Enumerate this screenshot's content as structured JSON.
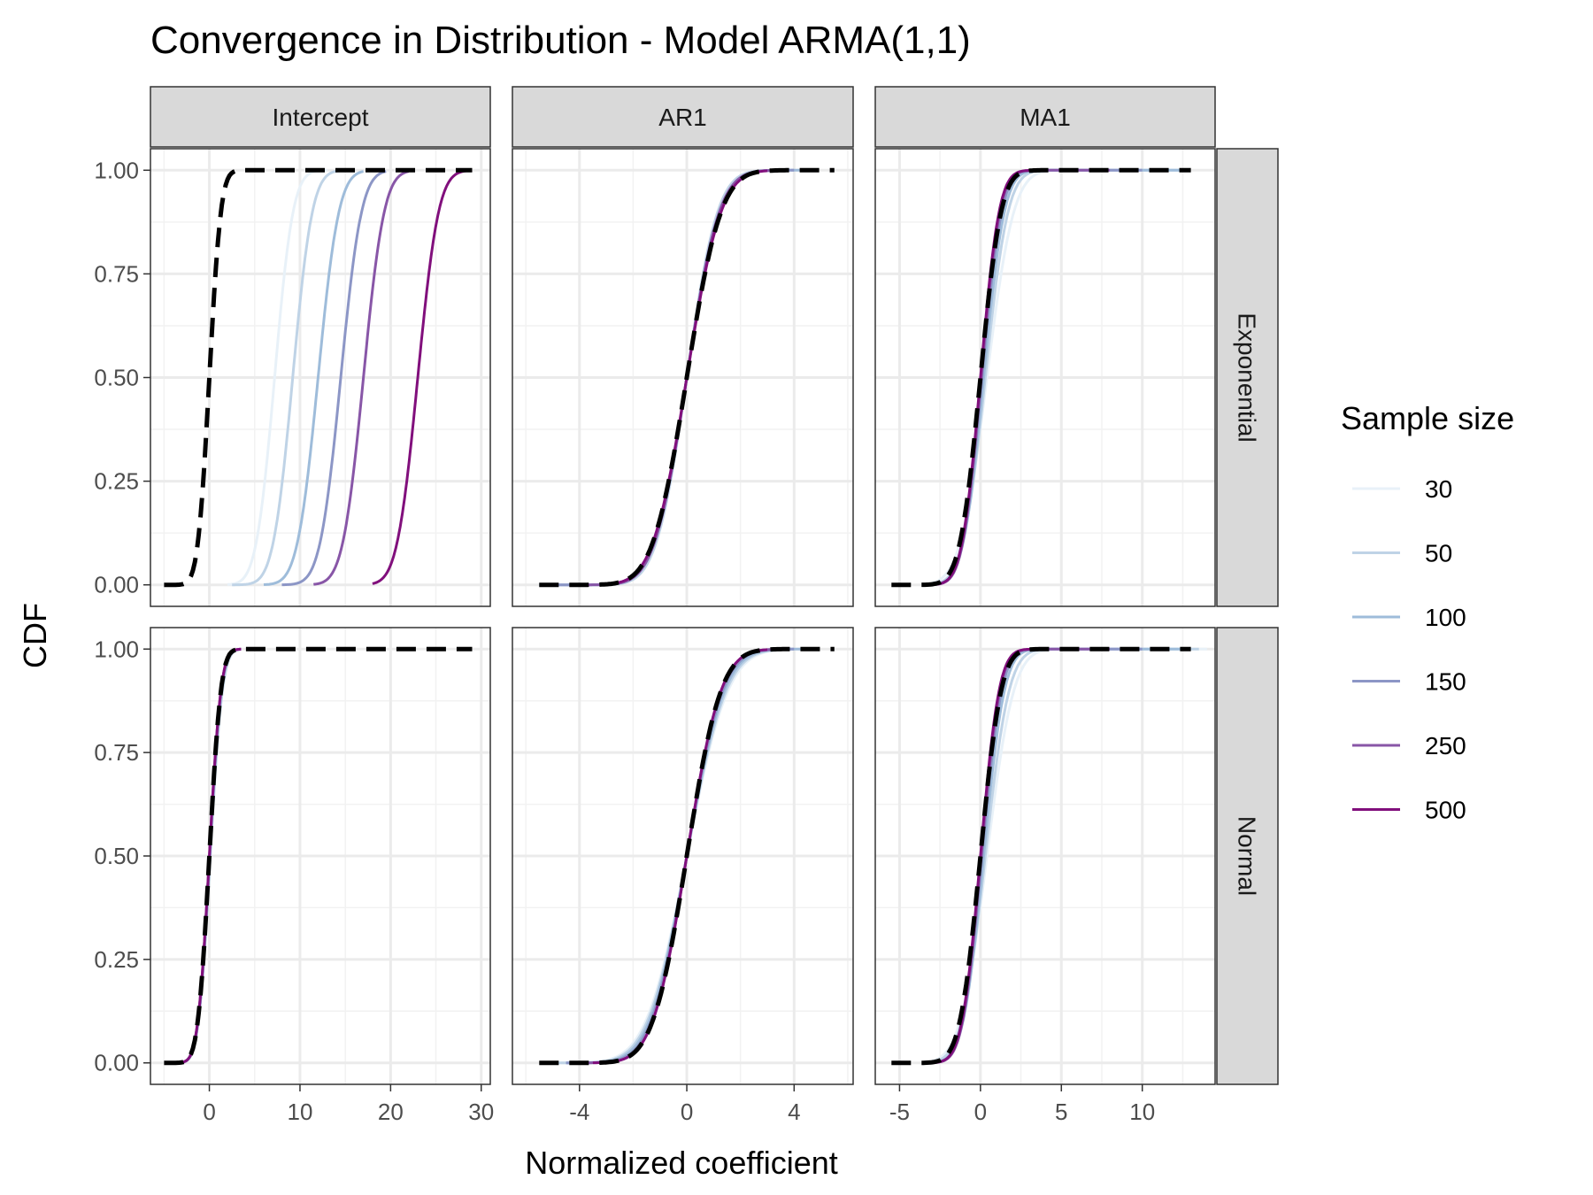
{
  "chart_data": {
    "type": "line",
    "title": "Convergence in Distribution - Model ARMA(1,1)",
    "xlabel": "Normalized coefficient",
    "ylabel": "CDF",
    "legend": {
      "title": "Sample size",
      "placement": "right"
    },
    "grid": true,
    "y_ticks": [
      "0.00",
      "0.25",
      "0.50",
      "0.75",
      "1.00"
    ],
    "ylim": [
      0,
      1
    ],
    "columns": [
      {
        "label": "Intercept",
        "xlim": [
          -6.5,
          31
        ],
        "ticks": [
          0,
          10,
          20,
          30
        ]
      },
      {
        "label": "AR1",
        "xlim": [
          -6.5,
          6.2
        ],
        "ticks": [
          -4,
          0,
          4
        ]
      },
      {
        "label": "MA1",
        "xlim": [
          -6.5,
          14.5
        ],
        "ticks": [
          -5,
          0,
          5,
          10
        ]
      }
    ],
    "rows": [
      "Exponential",
      "Normal"
    ],
    "series": [
      {
        "name": "30",
        "color": "#e8f1f8"
      },
      {
        "name": "50",
        "color": "#bfd3e6"
      },
      {
        "name": "100",
        "color": "#9ebcda"
      },
      {
        "name": "150",
        "color": "#8c96c6"
      },
      {
        "name": "250",
        "color": "#8856a7"
      },
      {
        "name": "500",
        "color": "#810f7c"
      }
    ],
    "reference": {
      "style": "dashed",
      "color": "#000000",
      "distribution": "standard normal CDF"
    },
    "panels": [
      {
        "row": "Exponential",
        "column": "Intercept",
        "x_range": [
          -5,
          29
        ],
        "curves": [
          {
            "series": "30",
            "center": 7.2,
            "spread": 1.6,
            "min": 2.0,
            "max": 13.0
          },
          {
            "series": "50",
            "center": 9.2,
            "spread": 1.7,
            "min": 2.5,
            "max": 15.0
          },
          {
            "series": "100",
            "center": 12.0,
            "spread": 1.8,
            "min": 6.0,
            "max": 17.0
          },
          {
            "series": "150",
            "center": 14.5,
            "spread": 1.8,
            "min": 8.0,
            "max": 19.5
          },
          {
            "series": "250",
            "center": 17.0,
            "spread": 1.8,
            "min": 11.5,
            "max": 22.0
          },
          {
            "series": "500",
            "center": 23.0,
            "spread": 1.8,
            "min": 18.0,
            "max": 29.0
          }
        ]
      },
      {
        "row": "Exponential",
        "column": "AR1",
        "x_range": [
          -5.5,
          5.5
        ],
        "curves": [
          {
            "series": "30",
            "center": 0.0,
            "spread": 0.95,
            "min": -5.5,
            "max": 3.5
          },
          {
            "series": "50",
            "center": 0.0,
            "spread": 0.9,
            "min": -5.5,
            "max": 4.0
          },
          {
            "series": "100",
            "center": 0.0,
            "spread": 0.95,
            "min": -5.5,
            "max": 4.3
          },
          {
            "series": "150",
            "center": 0.0,
            "spread": 0.95,
            "min": -5.0,
            "max": 4.0
          },
          {
            "series": "250",
            "center": 0.0,
            "spread": 0.95,
            "min": -4.0,
            "max": 3.5
          },
          {
            "series": "500",
            "center": 0.0,
            "spread": 1.0,
            "min": -3.0,
            "max": 3.0
          }
        ]
      },
      {
        "row": "Exponential",
        "column": "MA1",
        "x_range": [
          -5.5,
          13
        ],
        "curves": [
          {
            "series": "30",
            "center": 0.4,
            "spread": 1.3,
            "min": -3.0,
            "max": 12.5
          },
          {
            "series": "50",
            "center": 0.3,
            "spread": 1.1,
            "min": -3.0,
            "max": 12.5
          },
          {
            "series": "100",
            "center": 0.2,
            "spread": 1.0,
            "min": -3.0,
            "max": 12.5
          },
          {
            "series": "150",
            "center": 0.1,
            "spread": 0.95,
            "min": -3.0,
            "max": 10.0
          },
          {
            "series": "250",
            "center": 0.05,
            "spread": 0.9,
            "min": -3.0,
            "max": 8.0
          },
          {
            "series": "500",
            "center": 0.0,
            "spread": 0.9,
            "min": -3.0,
            "max": 4.0
          }
        ]
      },
      {
        "row": "Normal",
        "column": "Intercept",
        "x_range": [
          -5,
          29
        ],
        "curves": [
          {
            "series": "30",
            "center": 0.1,
            "spread": 1.05,
            "min": -3.5,
            "max": 3.5
          },
          {
            "series": "50",
            "center": 0.1,
            "spread": 1.05,
            "min": -3.5,
            "max": 3.5
          },
          {
            "series": "100",
            "center": 0.05,
            "spread": 1.0,
            "min": -3.5,
            "max": 3.5
          },
          {
            "series": "150",
            "center": 0.05,
            "spread": 1.0,
            "min": -3.5,
            "max": 3.5
          },
          {
            "series": "250",
            "center": 0.0,
            "spread": 1.0,
            "min": -3.5,
            "max": 3.5
          },
          {
            "series": "500",
            "center": 0.0,
            "spread": 1.0,
            "min": -3.5,
            "max": 3.5
          }
        ]
      },
      {
        "row": "Normal",
        "column": "AR1",
        "x_range": [
          -5.5,
          5.5
        ],
        "curves": [
          {
            "series": "30",
            "center": 0.0,
            "spread": 1.2,
            "min": -5.0,
            "max": 3.5
          },
          {
            "series": "50",
            "center": 0.0,
            "spread": 1.15,
            "min": -5.0,
            "max": 4.0
          },
          {
            "series": "100",
            "center": 0.0,
            "spread": 1.1,
            "min": -4.5,
            "max": 4.3
          },
          {
            "series": "150",
            "center": 0.0,
            "spread": 1.05,
            "min": -4.5,
            "max": 4.0
          },
          {
            "series": "250",
            "center": 0.0,
            "spread": 1.0,
            "min": -4.0,
            "max": 3.5
          },
          {
            "series": "500",
            "center": 0.0,
            "spread": 1.0,
            "min": -3.5,
            "max": 3.0
          }
        ]
      },
      {
        "row": "Normal",
        "column": "MA1",
        "x_range": [
          -5.5,
          13
        ],
        "curves": [
          {
            "series": "30",
            "center": 0.4,
            "spread": 1.3,
            "min": -3.0,
            "max": 14.0
          },
          {
            "series": "50",
            "center": 0.3,
            "spread": 1.15,
            "min": -3.0,
            "max": 13.5
          },
          {
            "series": "100",
            "center": 0.2,
            "spread": 1.0,
            "min": -3.0,
            "max": 13.0
          },
          {
            "series": "150",
            "center": 0.1,
            "spread": 0.95,
            "min": -3.0,
            "max": 10.0
          },
          {
            "series": "250",
            "center": 0.05,
            "spread": 0.9,
            "min": -3.0,
            "max": 8.0
          },
          {
            "series": "500",
            "center": 0.0,
            "spread": 0.9,
            "min": -3.0,
            "max": 4.0
          }
        ]
      }
    ]
  }
}
